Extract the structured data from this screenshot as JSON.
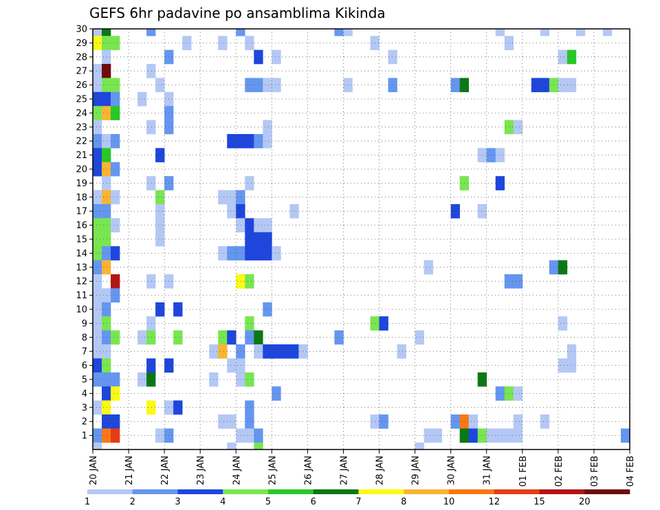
{
  "chart_data": {
    "type": "heatmap",
    "title": "GEFS 6hr padavine po ansamblima Kikinda",
    "xlabel": "",
    "ylabel": "",
    "x_ticks": [
      "20 JAN",
      "21 JAN",
      "22 JAN",
      "23 JAN",
      "24 JAN",
      "25 JAN",
      "26 JAN",
      "27 JAN",
      "28 JAN",
      "29 JAN",
      "30 JAN",
      "31 JAN",
      "01 FEB",
      "02 FEB",
      "03 FEB",
      "04 FEB"
    ],
    "y_range": [
      0,
      30
    ],
    "y_ticks": [
      1,
      2,
      3,
      4,
      5,
      6,
      7,
      8,
      9,
      10,
      11,
      12,
      13,
      14,
      15,
      16,
      17,
      18,
      19,
      20,
      21,
      22,
      23,
      24,
      25,
      26,
      27,
      28,
      29,
      30
    ],
    "x_range_days": [
      0,
      15
    ],
    "time_step_hours": 6,
    "grid": "dotted",
    "colorbar": {
      "position": "bottom",
      "labels": [
        "1",
        "2",
        "3",
        "4",
        "5",
        "6",
        "7",
        "8",
        "10",
        "12",
        "15",
        "20"
      ],
      "colors": [
        "#b4c8f5",
        "#6496f0",
        "#1e46dc",
        "#78e650",
        "#28c828",
        "#0a7814",
        "#fafa14",
        "#fab432",
        "#fa7814",
        "#e63c14",
        "#b41414",
        "#6e0a0a"
      ]
    },
    "cells": [
      [
        0,
        30,
        1
      ],
      [
        1,
        30,
        6
      ],
      [
        6,
        30,
        2
      ],
      [
        16,
        30,
        2
      ],
      [
        27,
        30,
        2
      ],
      [
        28,
        30,
        1
      ],
      [
        45,
        30,
        1
      ],
      [
        50,
        30,
        1
      ],
      [
        54,
        30,
        1
      ],
      [
        57,
        30,
        1
      ],
      [
        0,
        29,
        7
      ],
      [
        1,
        29,
        4
      ],
      [
        2,
        29,
        4
      ],
      [
        10,
        29,
        1
      ],
      [
        14,
        29,
        1
      ],
      [
        17,
        29,
        1
      ],
      [
        31,
        29,
        1
      ],
      [
        46,
        29,
        1
      ],
      [
        1,
        28,
        1
      ],
      [
        8,
        28,
        2
      ],
      [
        18,
        28,
        3
      ],
      [
        20,
        28,
        1
      ],
      [
        33,
        28,
        1
      ],
      [
        52,
        28,
        1
      ],
      [
        53,
        28,
        5
      ],
      [
        0,
        27,
        1
      ],
      [
        1,
        27,
        12
      ],
      [
        6,
        27,
        1
      ],
      [
        0,
        26,
        1
      ],
      [
        1,
        26,
        4
      ],
      [
        2,
        26,
        4
      ],
      [
        7,
        26,
        1
      ],
      [
        17,
        26,
        2
      ],
      [
        18,
        26,
        2
      ],
      [
        19,
        26,
        1
      ],
      [
        20,
        26,
        1
      ],
      [
        28,
        26,
        1
      ],
      [
        33,
        26,
        2
      ],
      [
        40,
        26,
        2
      ],
      [
        41,
        26,
        6
      ],
      [
        49,
        26,
        3
      ],
      [
        50,
        26,
        3
      ],
      [
        51,
        26,
        4
      ],
      [
        52,
        26,
        1
      ],
      [
        53,
        26,
        1
      ],
      [
        0,
        25,
        3
      ],
      [
        1,
        25,
        3
      ],
      [
        2,
        25,
        2
      ],
      [
        5,
        25,
        1
      ],
      [
        8,
        25,
        1
      ],
      [
        0,
        24,
        4
      ],
      [
        1,
        24,
        8
      ],
      [
        2,
        24,
        5
      ],
      [
        8,
        24,
        2
      ],
      [
        0,
        23,
        1
      ],
      [
        6,
        23,
        1
      ],
      [
        8,
        23,
        2
      ],
      [
        19,
        23,
        1
      ],
      [
        46,
        23,
        4
      ],
      [
        47,
        23,
        1
      ],
      [
        0,
        22,
        2
      ],
      [
        1,
        22,
        1
      ],
      [
        2,
        22,
        2
      ],
      [
        15,
        22,
        3
      ],
      [
        16,
        22,
        3
      ],
      [
        17,
        22,
        3
      ],
      [
        18,
        22,
        2
      ],
      [
        19,
        22,
        1
      ],
      [
        0,
        21,
        3
      ],
      [
        1,
        21,
        5
      ],
      [
        7,
        21,
        3
      ],
      [
        43,
        21,
        1
      ],
      [
        44,
        21,
        2
      ],
      [
        45,
        21,
        1
      ],
      [
        0,
        20,
        3
      ],
      [
        1,
        20,
        8
      ],
      [
        2,
        20,
        2
      ],
      [
        1,
        19,
        1
      ],
      [
        6,
        19,
        1
      ],
      [
        8,
        19,
        2
      ],
      [
        17,
        19,
        1
      ],
      [
        41,
        19,
        4
      ],
      [
        45,
        19,
        3
      ],
      [
        0,
        18,
        1
      ],
      [
        1,
        18,
        8
      ],
      [
        2,
        18,
        1
      ],
      [
        7,
        18,
        4
      ],
      [
        14,
        18,
        1
      ],
      [
        15,
        18,
        1
      ],
      [
        16,
        18,
        2
      ],
      [
        0,
        17,
        2
      ],
      [
        1,
        17,
        2
      ],
      [
        7,
        17,
        1
      ],
      [
        15,
        17,
        1
      ],
      [
        16,
        17,
        3
      ],
      [
        22,
        17,
        1
      ],
      [
        40,
        17,
        3
      ],
      [
        43,
        17,
        1
      ],
      [
        0,
        16,
        4
      ],
      [
        1,
        16,
        4
      ],
      [
        2,
        16,
        1
      ],
      [
        7,
        16,
        1
      ],
      [
        16,
        16,
        1
      ],
      [
        17,
        16,
        3
      ],
      [
        18,
        16,
        1
      ],
      [
        19,
        16,
        1
      ],
      [
        0,
        15,
        4
      ],
      [
        1,
        15,
        4
      ],
      [
        7,
        15,
        1
      ],
      [
        17,
        15,
        3
      ],
      [
        18,
        15,
        3
      ],
      [
        19,
        15,
        3
      ],
      [
        0,
        14,
        4
      ],
      [
        1,
        14,
        2
      ],
      [
        2,
        14,
        3
      ],
      [
        14,
        14,
        1
      ],
      [
        15,
        14,
        2
      ],
      [
        16,
        14,
        2
      ],
      [
        17,
        14,
        3
      ],
      [
        18,
        14,
        3
      ],
      [
        19,
        14,
        3
      ],
      [
        20,
        14,
        1
      ],
      [
        0,
        13,
        2
      ],
      [
        1,
        13,
        8
      ],
      [
        37,
        13,
        1
      ],
      [
        51,
        13,
        2
      ],
      [
        52,
        13,
        6
      ],
      [
        0,
        12,
        1
      ],
      [
        2,
        12,
        11
      ],
      [
        6,
        12,
        1
      ],
      [
        8,
        12,
        1
      ],
      [
        16,
        12,
        7
      ],
      [
        17,
        12,
        4
      ],
      [
        46,
        12,
        2
      ],
      [
        47,
        12,
        2
      ],
      [
        0,
        11,
        1
      ],
      [
        1,
        11,
        1
      ],
      [
        2,
        11,
        2
      ],
      [
        0,
        10,
        1
      ],
      [
        1,
        10,
        2
      ],
      [
        7,
        10,
        3
      ],
      [
        9,
        10,
        3
      ],
      [
        19,
        10,
        2
      ],
      [
        0,
        9,
        1
      ],
      [
        1,
        9,
        4
      ],
      [
        6,
        9,
        1
      ],
      [
        17,
        9,
        4
      ],
      [
        31,
        9,
        4
      ],
      [
        32,
        9,
        3
      ],
      [
        52,
        9,
        1
      ],
      [
        0,
        8,
        1
      ],
      [
        1,
        8,
        2
      ],
      [
        2,
        8,
        4
      ],
      [
        5,
        8,
        1
      ],
      [
        6,
        8,
        4
      ],
      [
        9,
        8,
        4
      ],
      [
        14,
        8,
        4
      ],
      [
        15,
        8,
        3
      ],
      [
        17,
        8,
        2
      ],
      [
        18,
        8,
        6
      ],
      [
        27,
        8,
        2
      ],
      [
        36,
        8,
        1
      ],
      [
        0,
        7,
        1
      ],
      [
        1,
        7,
        1
      ],
      [
        13,
        7,
        1
      ],
      [
        14,
        7,
        8
      ],
      [
        16,
        7,
        2
      ],
      [
        18,
        7,
        1
      ],
      [
        19,
        7,
        3
      ],
      [
        20,
        7,
        3
      ],
      [
        21,
        7,
        3
      ],
      [
        22,
        7,
        3
      ],
      [
        23,
        7,
        1
      ],
      [
        34,
        7,
        1
      ],
      [
        53,
        7,
        1
      ],
      [
        0,
        6,
        3
      ],
      [
        1,
        6,
        4
      ],
      [
        6,
        6,
        3
      ],
      [
        8,
        6,
        3
      ],
      [
        15,
        6,
        1
      ],
      [
        16,
        6,
        1
      ],
      [
        52,
        6,
        1
      ],
      [
        53,
        6,
        1
      ],
      [
        0,
        5,
        2
      ],
      [
        1,
        5,
        2
      ],
      [
        2,
        5,
        2
      ],
      [
        5,
        5,
        1
      ],
      [
        6,
        5,
        6
      ],
      [
        13,
        5,
        1
      ],
      [
        16,
        5,
        1
      ],
      [
        17,
        5,
        4
      ],
      [
        43,
        5,
        6
      ],
      [
        1,
        4,
        3
      ],
      [
        2,
        4,
        7
      ],
      [
        20,
        4,
        2
      ],
      [
        45,
        4,
        2
      ],
      [
        46,
        4,
        4
      ],
      [
        47,
        4,
        1
      ],
      [
        0,
        3,
        1
      ],
      [
        1,
        3,
        7
      ],
      [
        6,
        3,
        7
      ],
      [
        8,
        3,
        1
      ],
      [
        9,
        3,
        3
      ],
      [
        17,
        3,
        2
      ],
      [
        1,
        2,
        3
      ],
      [
        2,
        2,
        3
      ],
      [
        14,
        2,
        1
      ],
      [
        15,
        2,
        1
      ],
      [
        17,
        2,
        2
      ],
      [
        31,
        2,
        1
      ],
      [
        32,
        2,
        2
      ],
      [
        40,
        2,
        2
      ],
      [
        41,
        2,
        9
      ],
      [
        42,
        2,
        1
      ],
      [
        47,
        2,
        1
      ],
      [
        50,
        2,
        1
      ],
      [
        0,
        1,
        2
      ],
      [
        1,
        1,
        9
      ],
      [
        2,
        1,
        10
      ],
      [
        7,
        1,
        1
      ],
      [
        8,
        1,
        2
      ],
      [
        16,
        1,
        1
      ],
      [
        17,
        1,
        1
      ],
      [
        18,
        1,
        2
      ],
      [
        37,
        1,
        1
      ],
      [
        38,
        1,
        1
      ],
      [
        41,
        1,
        6
      ],
      [
        42,
        1,
        3
      ],
      [
        43,
        1,
        4
      ],
      [
        44,
        1,
        1
      ],
      [
        45,
        1,
        1
      ],
      [
        46,
        1,
        1
      ],
      [
        47,
        1,
        1
      ],
      [
        59,
        1,
        2
      ],
      [
        0,
        0,
        1
      ],
      [
        15,
        0,
        1
      ],
      [
        18,
        0,
        4
      ],
      [
        36,
        0,
        1
      ]
    ]
  }
}
